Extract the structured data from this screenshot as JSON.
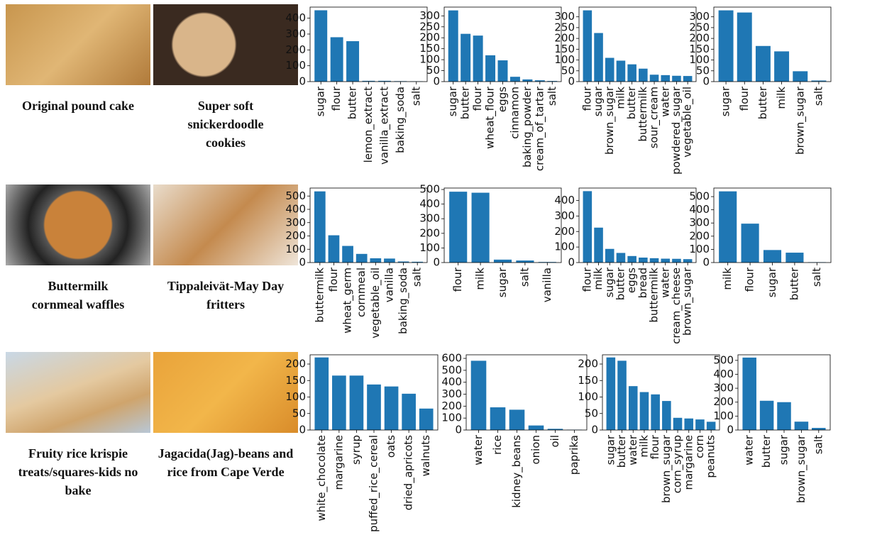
{
  "recipes": [
    {
      "title": "Original pound cake"
    },
    {
      "title": "Super soft snickerdoodle cookies"
    },
    {
      "title": "Buttermilk cornmeal waffles"
    },
    {
      "title": "Tippaleivät-May Day fritters"
    },
    {
      "title": "Fruity rice krispie treats/squares-kids no bake"
    },
    {
      "title": "Jagacida(Jag)-beans and rice from Cape Verde"
    }
  ],
  "chart_data": [
    {
      "type": "bar",
      "color": "#1f77b4",
      "categories": [
        "sugar",
        "flour",
        "butter",
        "lemon_extract",
        "vanilla_extract",
        "baking_soda",
        "salt"
      ],
      "values": [
        450,
        280,
        255,
        5,
        5,
        3,
        2
      ],
      "ylim": [
        0,
        470
      ],
      "yticks": [
        0,
        100,
        200,
        300,
        400
      ]
    },
    {
      "type": "bar",
      "color": "#1f77b4",
      "categories": [
        "sugar",
        "butter",
        "flour",
        "wheat_flour",
        "eggs",
        "cinnamon",
        "baking_powder",
        "cream_of_tartar",
        "salt"
      ],
      "values": [
        325,
        218,
        210,
        120,
        97,
        22,
        10,
        6,
        3
      ],
      "ylim": [
        0,
        340
      ],
      "yticks": [
        0,
        50,
        100,
        150,
        200,
        250,
        300
      ]
    },
    {
      "type": "bar",
      "color": "#1f77b4",
      "categories": [
        "flour",
        "sugar",
        "brown_sugar",
        "milk",
        "butter",
        "buttermilk",
        "sour_cream",
        "water",
        "powdered_sugar",
        "vegetable_oil"
      ],
      "values": [
        330,
        225,
        110,
        97,
        80,
        60,
        32,
        30,
        27,
        26
      ],
      "ylim": [
        0,
        345
      ],
      "yticks": [
        0,
        50,
        100,
        150,
        200,
        250,
        300
      ]
    },
    {
      "type": "bar",
      "color": "#1f77b4",
      "categories": [
        "sugar",
        "flour",
        "butter",
        "milk",
        "brown_sugar",
        "salt"
      ],
      "values": [
        330,
        320,
        165,
        140,
        48,
        5
      ],
      "ylim": [
        0,
        345
      ],
      "yticks": [
        0,
        50,
        100,
        150,
        200,
        250,
        300
      ]
    },
    {
      "type": "bar",
      "color": "#1f77b4",
      "categories": [
        "buttermilk",
        "flour",
        "wheat_germ",
        "cornmeal",
        "vegetable_oil",
        "vanilla",
        "baking_soda",
        "salt"
      ],
      "values": [
        535,
        205,
        125,
        65,
        32,
        30,
        8,
        6
      ],
      "ylim": [
        0,
        560
      ],
      "yticks": [
        0,
        100,
        200,
        300,
        400,
        500
      ]
    },
    {
      "type": "bar",
      "color": "#1f77b4",
      "categories": [
        "flour",
        "milk",
        "sugar",
        "salt",
        "vanilla"
      ],
      "values": [
        485,
        478,
        20,
        14,
        4
      ],
      "ylim": [
        0,
        510
      ],
      "yticks": [
        0,
        100,
        200,
        300,
        400,
        500
      ]
    },
    {
      "type": "bar",
      "color": "#1f77b4",
      "categories": [
        "flour",
        "milk",
        "sugar",
        "butter",
        "eggs",
        "bread",
        "buttermilk",
        "water",
        "cream_cheese",
        "brown_sugar"
      ],
      "values": [
        460,
        225,
        88,
        62,
        42,
        32,
        28,
        25,
        24,
        22
      ],
      "ylim": [
        0,
        480
      ],
      "yticks": [
        0,
        100,
        200,
        300,
        400
      ]
    },
    {
      "type": "bar",
      "color": "#1f77b4",
      "categories": [
        "milk",
        "flour",
        "sugar",
        "butter",
        "salt"
      ],
      "values": [
        540,
        295,
        95,
        75,
        3
      ],
      "ylim": [
        0,
        565
      ],
      "yticks": [
        0,
        100,
        200,
        300,
        400,
        500
      ]
    },
    {
      "type": "bar",
      "color": "#1f77b4",
      "categories": [
        "white_chocolate",
        "margarine",
        "syrup",
        "puffed_rice_cereal",
        "oats",
        "dried_apricots",
        "walnuts"
      ],
      "values": [
        220,
        165,
        165,
        138,
        132,
        110,
        65
      ],
      "ylim": [
        0,
        228
      ],
      "yticks": [
        0,
        50,
        100,
        150,
        200
      ]
    },
    {
      "type": "bar",
      "color": "#1f77b4",
      "categories": [
        "water",
        "rice",
        "kidney_beans",
        "onion",
        "oil",
        "paprika"
      ],
      "values": [
        580,
        190,
        170,
        38,
        10,
        3
      ],
      "ylim": [
        0,
        630
      ],
      "yticks": [
        0,
        100,
        200,
        300,
        400,
        500,
        600
      ]
    },
    {
      "type": "bar",
      "color": "#1f77b4",
      "categories": [
        "sugar",
        "butter",
        "water",
        "milk",
        "flour",
        "brown_sugar",
        "corn_syrup",
        "margarine",
        "corn",
        "peanuts"
      ],
      "values": [
        220,
        210,
        133,
        115,
        108,
        88,
        37,
        35,
        32,
        25
      ],
      "ylim": [
        0,
        228
      ],
      "yticks": [
        0,
        50,
        100,
        150,
        200
      ]
    },
    {
      "type": "bar",
      "color": "#1f77b4",
      "categories": [
        "water",
        "butter",
        "sugar",
        "brown_sugar",
        "salt"
      ],
      "values": [
        520,
        210,
        200,
        60,
        15
      ],
      "ylim": [
        0,
        540
      ],
      "yticks": [
        0,
        100,
        200,
        300,
        400,
        500
      ]
    }
  ]
}
